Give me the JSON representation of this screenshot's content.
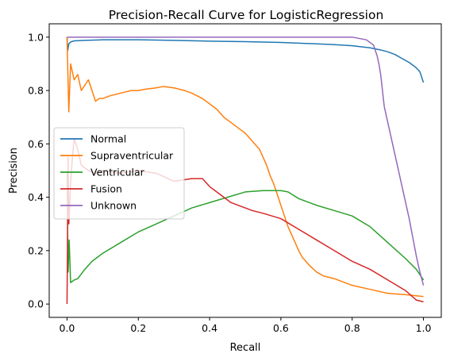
{
  "chart_data": {
    "type": "line",
    "title": "Precision-Recall Curve for LogisticRegression",
    "xlabel": "Recall",
    "ylabel": "Precision",
    "xlim": [
      -0.05,
      1.05
    ],
    "ylim": [
      -0.05,
      1.05
    ],
    "xticks": [
      0.0,
      0.2,
      0.4,
      0.6,
      0.8,
      1.0
    ],
    "xtick_labels": [
      "0.0",
      "0.2",
      "0.4",
      "0.6",
      "0.8",
      "1.0"
    ],
    "yticks": [
      0.0,
      0.2,
      0.4,
      0.6,
      0.8,
      1.0
    ],
    "ytick_labels": [
      "0.0",
      "0.2",
      "0.4",
      "0.6",
      "0.8",
      "1.0"
    ],
    "grid": false,
    "legend_position": "center-left",
    "series": [
      {
        "name": "Normal",
        "color": "#1f77b4",
        "points": [
          [
            0.0,
            1.0
          ],
          [
            0.002,
            0.95
          ],
          [
            0.005,
            0.975
          ],
          [
            0.01,
            0.982
          ],
          [
            0.02,
            0.986
          ],
          [
            0.05,
            0.988
          ],
          [
            0.1,
            0.99
          ],
          [
            0.2,
            0.99
          ],
          [
            0.3,
            0.988
          ],
          [
            0.4,
            0.985
          ],
          [
            0.5,
            0.983
          ],
          [
            0.6,
            0.98
          ],
          [
            0.7,
            0.975
          ],
          [
            0.75,
            0.972
          ],
          [
            0.8,
            0.968
          ],
          [
            0.85,
            0.96
          ],
          [
            0.88,
            0.952
          ],
          [
            0.9,
            0.945
          ],
          [
            0.92,
            0.935
          ],
          [
            0.94,
            0.92
          ],
          [
            0.96,
            0.905
          ],
          [
            0.98,
            0.885
          ],
          [
            0.99,
            0.87
          ],
          [
            1.0,
            0.83
          ]
        ]
      },
      {
        "name": "Supraventricular",
        "color": "#ff7f0e",
        "points": [
          [
            0.0,
            1.0
          ],
          [
            0.005,
            0.72
          ],
          [
            0.01,
            0.9
          ],
          [
            0.02,
            0.84
          ],
          [
            0.03,
            0.86
          ],
          [
            0.04,
            0.8
          ],
          [
            0.05,
            0.82
          ],
          [
            0.06,
            0.84
          ],
          [
            0.07,
            0.8
          ],
          [
            0.08,
            0.76
          ],
          [
            0.09,
            0.77
          ],
          [
            0.1,
            0.77
          ],
          [
            0.12,
            0.78
          ],
          [
            0.15,
            0.79
          ],
          [
            0.18,
            0.8
          ],
          [
            0.2,
            0.8
          ],
          [
            0.22,
            0.805
          ],
          [
            0.25,
            0.81
          ],
          [
            0.27,
            0.815
          ],
          [
            0.3,
            0.81
          ],
          [
            0.33,
            0.8
          ],
          [
            0.35,
            0.79
          ],
          [
            0.38,
            0.77
          ],
          [
            0.4,
            0.75
          ],
          [
            0.42,
            0.73
          ],
          [
            0.44,
            0.7
          ],
          [
            0.46,
            0.68
          ],
          [
            0.48,
            0.66
          ],
          [
            0.5,
            0.64
          ],
          [
            0.52,
            0.61
          ],
          [
            0.54,
            0.58
          ],
          [
            0.55,
            0.55
          ],
          [
            0.56,
            0.52
          ],
          [
            0.57,
            0.48
          ],
          [
            0.58,
            0.45
          ],
          [
            0.59,
            0.41
          ],
          [
            0.6,
            0.37
          ],
          [
            0.61,
            0.33
          ],
          [
            0.62,
            0.29
          ],
          [
            0.63,
            0.26
          ],
          [
            0.64,
            0.23
          ],
          [
            0.65,
            0.2
          ],
          [
            0.66,
            0.175
          ],
          [
            0.68,
            0.145
          ],
          [
            0.7,
            0.12
          ],
          [
            0.72,
            0.105
          ],
          [
            0.75,
            0.095
          ],
          [
            0.8,
            0.07
          ],
          [
            0.85,
            0.055
          ],
          [
            0.9,
            0.04
          ],
          [
            0.95,
            0.035
          ],
          [
            1.0,
            0.028
          ]
        ]
      },
      {
        "name": "Ventricular",
        "color": "#2ca02c",
        "points": [
          [
            0.0,
            0.5
          ],
          [
            0.003,
            0.12
          ],
          [
            0.006,
            0.24
          ],
          [
            0.01,
            0.08
          ],
          [
            0.02,
            0.09
          ],
          [
            0.03,
            0.095
          ],
          [
            0.05,
            0.13
          ],
          [
            0.07,
            0.16
          ],
          [
            0.1,
            0.19
          ],
          [
            0.15,
            0.23
          ],
          [
            0.2,
            0.27
          ],
          [
            0.25,
            0.3
          ],
          [
            0.3,
            0.33
          ],
          [
            0.35,
            0.36
          ],
          [
            0.4,
            0.38
          ],
          [
            0.45,
            0.4
          ],
          [
            0.5,
            0.42
          ],
          [
            0.55,
            0.425
          ],
          [
            0.6,
            0.425
          ],
          [
            0.62,
            0.42
          ],
          [
            0.65,
            0.395
          ],
          [
            0.7,
            0.37
          ],
          [
            0.75,
            0.35
          ],
          [
            0.8,
            0.33
          ],
          [
            0.85,
            0.29
          ],
          [
            0.9,
            0.23
          ],
          [
            0.95,
            0.17
          ],
          [
            0.98,
            0.13
          ],
          [
            1.0,
            0.09
          ]
        ]
      },
      {
        "name": "Fusion",
        "color": "#d62728",
        "points": [
          [
            0.0,
            0.0
          ],
          [
            0.003,
            0.55
          ],
          [
            0.005,
            0.3
          ],
          [
            0.01,
            0.45
          ],
          [
            0.015,
            0.55
          ],
          [
            0.02,
            0.62
          ],
          [
            0.03,
            0.58
          ],
          [
            0.04,
            0.52
          ],
          [
            0.06,
            0.5
          ],
          [
            0.08,
            0.49
          ],
          [
            0.1,
            0.5
          ],
          [
            0.15,
            0.49
          ],
          [
            0.2,
            0.5
          ],
          [
            0.25,
            0.49
          ],
          [
            0.3,
            0.46
          ],
          [
            0.35,
            0.47
          ],
          [
            0.38,
            0.47
          ],
          [
            0.4,
            0.44
          ],
          [
            0.42,
            0.42
          ],
          [
            0.44,
            0.4
          ],
          [
            0.46,
            0.38
          ],
          [
            0.48,
            0.37
          ],
          [
            0.5,
            0.36
          ],
          [
            0.52,
            0.35
          ],
          [
            0.55,
            0.34
          ],
          [
            0.6,
            0.32
          ],
          [
            0.65,
            0.28
          ],
          [
            0.7,
            0.24
          ],
          [
            0.75,
            0.2
          ],
          [
            0.8,
            0.16
          ],
          [
            0.85,
            0.13
          ],
          [
            0.9,
            0.09
          ],
          [
            0.95,
            0.05
          ],
          [
            0.98,
            0.015
          ],
          [
            1.0,
            0.008
          ]
        ]
      },
      {
        "name": "Unknown",
        "color": "#9467bd",
        "points": [
          [
            0.0,
            1.0
          ],
          [
            0.1,
            1.0
          ],
          [
            0.3,
            1.0
          ],
          [
            0.5,
            1.0
          ],
          [
            0.7,
            1.0
          ],
          [
            0.8,
            1.0
          ],
          [
            0.84,
            0.99
          ],
          [
            0.86,
            0.97
          ],
          [
            0.87,
            0.93
          ],
          [
            0.875,
            0.9
          ],
          [
            0.88,
            0.86
          ],
          [
            0.885,
            0.8
          ],
          [
            0.89,
            0.74
          ],
          [
            0.9,
            0.68
          ],
          [
            0.91,
            0.62
          ],
          [
            0.92,
            0.56
          ],
          [
            0.93,
            0.5
          ],
          [
            0.94,
            0.44
          ],
          [
            0.95,
            0.38
          ],
          [
            0.96,
            0.32
          ],
          [
            0.97,
            0.25
          ],
          [
            0.98,
            0.18
          ],
          [
            0.99,
            0.12
          ],
          [
            1.0,
            0.07
          ]
        ]
      }
    ]
  }
}
